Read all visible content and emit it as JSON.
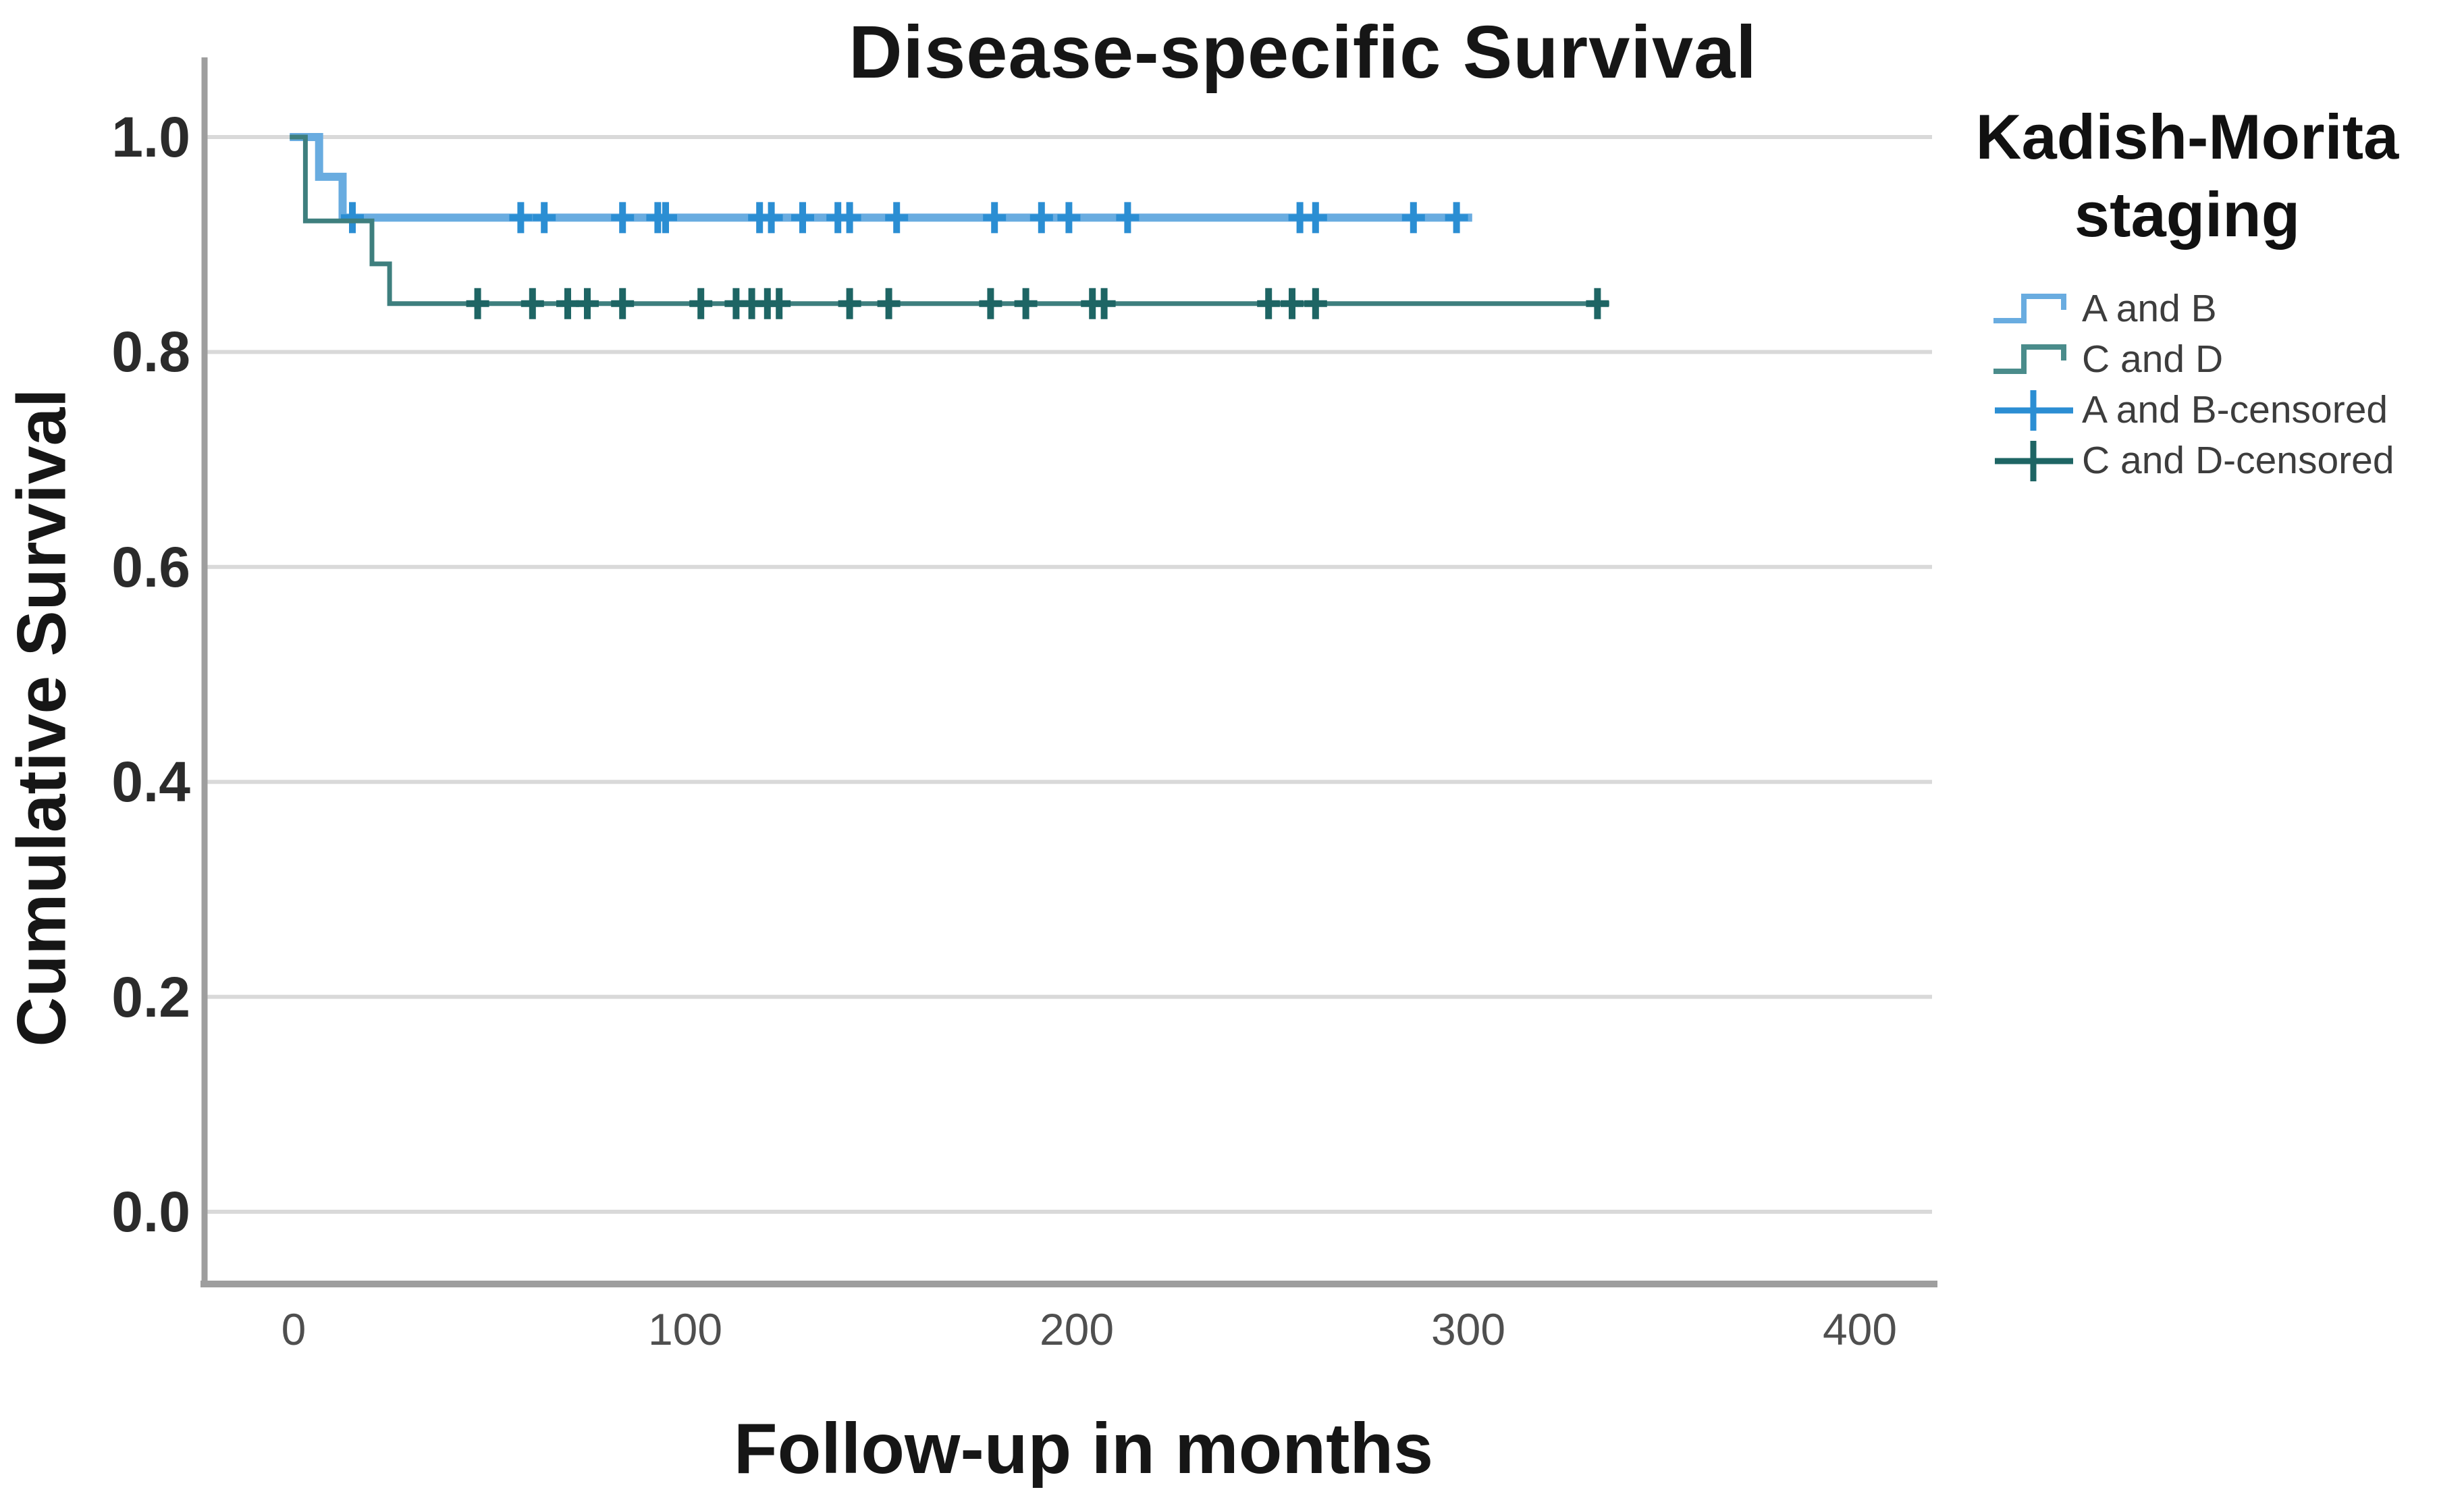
{
  "chart": {
    "title": "Disease-specific Survival",
    "x_label": "Follow-up in months",
    "y_label": "Cumulative Survival"
  },
  "legend": {
    "title": "Kadish-Morita staging",
    "items": [
      {
        "label": "A and B",
        "symbol": "step",
        "color": "#69ACE0"
      },
      {
        "label": "C and D",
        "symbol": "step",
        "color": "#4A8C8B"
      },
      {
        "label": "A and B-censored",
        "symbol": "plus",
        "color": "#2B8ED3"
      },
      {
        "label": "C and D-censored",
        "symbol": "plus",
        "color": "#1E6564"
      }
    ]
  },
  "colors": {
    "background": "#ffffff",
    "grid": "#d9d9d9",
    "axis": "#9e9e9e",
    "title_text": "#161616",
    "y_tick_text": "#2b2b2b",
    "x_tick_text": "#4f4f4f",
    "legend_text": "#3d3d3d"
  },
  "chart_data": {
    "type": "line",
    "subtype": "kaplan-meier-step",
    "title": "Disease-specific Survival",
    "xlabel": "Follow-up in months",
    "ylabel": "Cumulative Survival",
    "xlim": [
      -22,
      418
    ],
    "ylim": [
      -0.07,
      1.08
    ],
    "grid": true,
    "legend_position": "right",
    "x_ticks": [
      {
        "value": 0,
        "label": "0"
      },
      {
        "value": 100,
        "label": "100"
      },
      {
        "value": 200,
        "label": "200"
      },
      {
        "value": 300,
        "label": "300"
      },
      {
        "value": 400,
        "label": "400"
      }
    ],
    "y_ticks": [
      {
        "value": 1.0,
        "label": "1.0"
      },
      {
        "value": 0.8,
        "label": "0.8"
      },
      {
        "value": 0.6,
        "label": "0.6"
      },
      {
        "value": 0.4,
        "label": "0.4"
      },
      {
        "value": 0.2,
        "label": "0.2"
      },
      {
        "value": 0.0,
        "label": "0.0"
      }
    ],
    "series": [
      {
        "name": "A and B",
        "line_color": "#69ACE0",
        "censor_color": "#2B8ED3",
        "line_width": 12,
        "points": [
          [
            -1,
            1.0
          ],
          [
            6.5,
            1.0
          ],
          [
            6.5,
            0.963
          ],
          [
            12.5,
            0.963
          ],
          [
            12.5,
            0.925
          ],
          [
            301,
            0.925
          ]
        ],
        "censored_y": 0.925,
        "censored_x": [
          15,
          58,
          64,
          84,
          93,
          95,
          119,
          122,
          130,
          139,
          142,
          154,
          179,
          191,
          198,
          213,
          257,
          261,
          286,
          297
        ]
      },
      {
        "name": "C and D",
        "line_color": "#3E7F7E",
        "censor_color": "#1E6564",
        "line_width": 7,
        "points": [
          [
            -1,
            1.0
          ],
          [
            3,
            1.0
          ],
          [
            3,
            0.922
          ],
          [
            20,
            0.922
          ],
          [
            20,
            0.882
          ],
          [
            24.5,
            0.882
          ],
          [
            24.5,
            0.845
          ],
          [
            336,
            0.845
          ]
        ],
        "censored_y": 0.845,
        "censored_x": [
          47,
          61,
          70,
          75,
          84,
          104,
          113,
          117,
          121,
          124,
          142,
          152,
          178,
          187,
          204,
          207,
          249,
          255,
          261,
          333
        ]
      }
    ]
  }
}
